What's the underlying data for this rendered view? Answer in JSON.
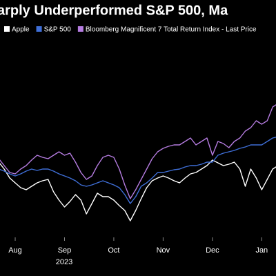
{
  "chart_data": {
    "type": "line",
    "title": "arply Underperformed S&P 500, Ma",
    "year_label": "2023",
    "categories": [
      null,
      null,
      null,
      "Aug",
      null,
      null,
      null,
      null,
      null,
      null,
      null,
      null,
      "Sep",
      null,
      null,
      null,
      null,
      null,
      null,
      null,
      null,
      "Oct",
      null,
      null,
      null,
      null,
      null,
      null,
      null,
      null,
      "Nov",
      null,
      null,
      null,
      null,
      null,
      null,
      null,
      null,
      "Dec",
      null,
      null,
      null,
      null,
      null,
      null,
      null,
      null,
      "Jan",
      null,
      null,
      null
    ],
    "ylim": [
      0,
      300
    ],
    "series": [
      {
        "name": "Apple",
        "color": "#ffffff",
        "values": [
          105,
          95,
          82,
          75,
          68,
          65,
          70,
          75,
          78,
          80,
          62,
          50,
          40,
          48,
          58,
          50,
          30,
          45,
          60,
          55,
          55,
          50,
          42,
          35,
          20,
          35,
          52,
          68,
          78,
          82,
          85,
          82,
          78,
          75,
          82,
          88,
          90,
          95,
          100,
          108,
          104,
          100,
          102,
          105,
          95,
          70,
          95,
          82,
          65,
          80,
          95,
          100
        ]
      },
      {
        "name": "S&P 500",
        "color": "#3f6fd8",
        "values": [
          95,
          92,
          88,
          85,
          88,
          92,
          95,
          93,
          95,
          95,
          92,
          88,
          85,
          82,
          78,
          72,
          70,
          72,
          75,
          78,
          75,
          72,
          68,
          58,
          45,
          55,
          70,
          75,
          82,
          90,
          90,
          92,
          94,
          95,
          98,
          100,
          100,
          102,
          105,
          105,
          115,
          118,
          120,
          122,
          125,
          127,
          130,
          130,
          130,
          135,
          140,
          142
        ]
      },
      {
        "name": "Bloomberg Magnificent 7 Total Return Index - Last Price",
        "color": "#b57ce0",
        "values": [
          110,
          100,
          90,
          88,
          95,
          100,
          108,
          115,
          112,
          110,
          115,
          120,
          115,
          118,
          105,
          90,
          80,
          85,
          100,
          112,
          115,
          112,
          95,
          72,
          52,
          65,
          80,
          95,
          110,
          120,
          125,
          128,
          130,
          130,
          135,
          140,
          130,
          135,
          140,
          115,
          135,
          132,
          126,
          135,
          140,
          150,
          155,
          165,
          160,
          165,
          185,
          190
        ]
      }
    ]
  }
}
